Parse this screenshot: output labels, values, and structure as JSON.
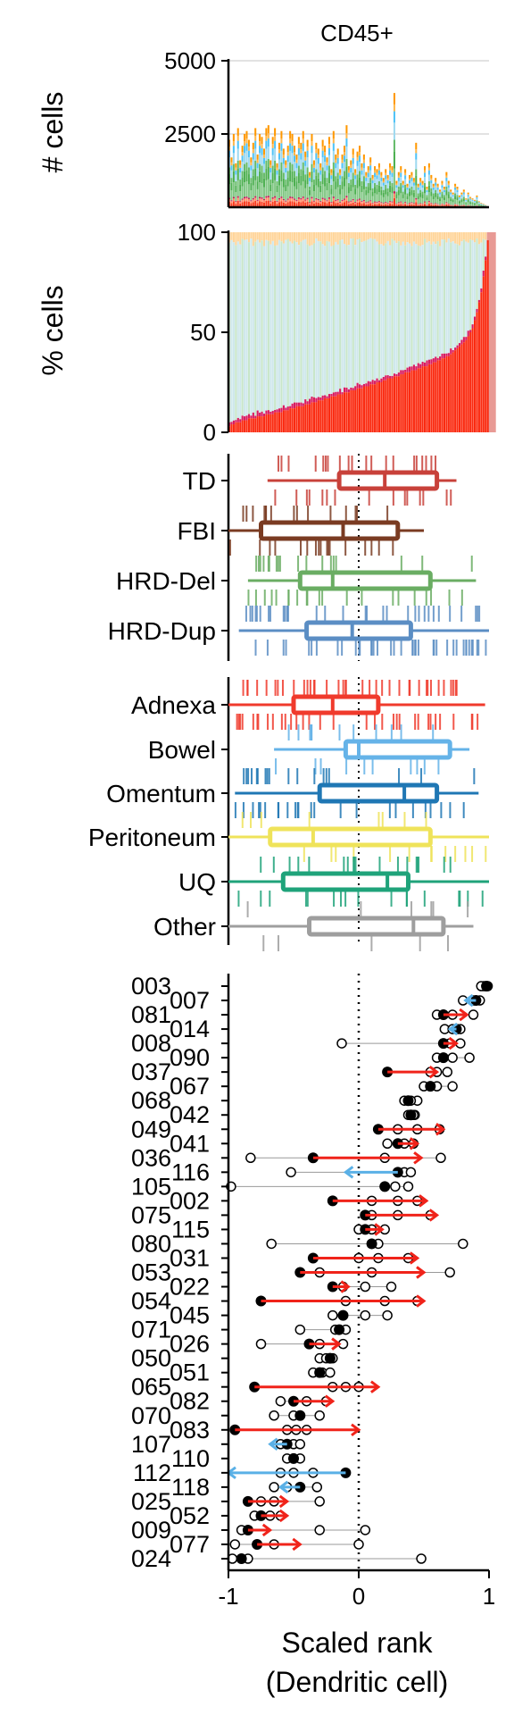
{
  "chart_data": [
    {
      "id": "cells",
      "type": "bar",
      "title": "CD45+",
      "ylabel": "# cells",
      "ylim": [
        0,
        5000
      ],
      "yticks": [
        2500,
        5000
      ],
      "grid": true,
      "n_samples": 120,
      "values_approx": [
        2300,
        1700,
        2500,
        1500,
        2700,
        1600,
        2100,
        2500,
        2600,
        2300,
        1700,
        2200,
        2700,
        1800,
        2500,
        2400,
        2000,
        2700,
        2800,
        1600,
        2400,
        2700,
        1500,
        2200,
        2600,
        2000,
        1600,
        2100,
        2600,
        2500,
        2100,
        1800,
        2400,
        2200,
        2600,
        1900,
        2300,
        1200,
        2500,
        1600,
        2200,
        2000,
        1500,
        2300,
        2100,
        1700,
        2400,
        1300,
        2600,
        1800,
        2000,
        1300,
        1800,
        2100,
        2800,
        1400,
        1600,
        2000,
        1300,
        1900,
        2100,
        1500,
        1800,
        1200,
        1400,
        1700,
        1100,
        1400,
        1300,
        1500,
        1200,
        1000,
        1300,
        1100,
        1500,
        1400,
        3900,
        900,
        1200,
        1400,
        900,
        1300,
        800,
        1100,
        1200,
        1000,
        2200,
        800,
        1000,
        900,
        1400,
        700,
        1500,
        1100,
        800,
        1000,
        800,
        600,
        900,
        700,
        1200,
        900,
        600,
        500,
        800,
        700,
        400,
        500,
        600,
        300,
        500,
        350,
        300,
        250,
        400,
        200,
        150,
        120,
        80,
        40
      ],
      "stack_colors": [
        "#fa3a1c",
        "#ff8a65",
        "#c2185b",
        "#81c784",
        "#4caf50",
        "#66bb6a",
        "#9fd9f0",
        "#4fc3f7",
        "#ffb74d",
        "#ff9800"
      ],
      "stack_fractions": [
        0.08,
        0.04,
        0.02,
        0.2,
        0.15,
        0.1,
        0.15,
        0.1,
        0.06,
        0.1
      ]
    },
    {
      "id": "pct",
      "type": "bar",
      "ylabel": "% cells",
      "ylim": [
        0,
        100
      ],
      "yticks": [
        0,
        50,
        100
      ],
      "n_samples": 120,
      "red_pct_approx": [
        3,
        4,
        4,
        5,
        5,
        5,
        6,
        6,
        6,
        7,
        7,
        7,
        7,
        8,
        8,
        8,
        8,
        9,
        9,
        9,
        9,
        10,
        10,
        10,
        10,
        11,
        11,
        11,
        12,
        12,
        12,
        13,
        13,
        13,
        13,
        14,
        14,
        14,
        15,
        15,
        15,
        16,
        16,
        16,
        17,
        17,
        17,
        18,
        18,
        18,
        19,
        19,
        19,
        20,
        20,
        20,
        21,
        21,
        21,
        22,
        22,
        22,
        23,
        23,
        23,
        24,
        24,
        24,
        25,
        25,
        25,
        26,
        26,
        27,
        27,
        27,
        28,
        28,
        28,
        29,
        29,
        30,
        30,
        30,
        31,
        31,
        31,
        32,
        32,
        33,
        33,
        33,
        34,
        34,
        35,
        35,
        36,
        36,
        37,
        37,
        38,
        38,
        39,
        40,
        41,
        42,
        43,
        44,
        45,
        46,
        48,
        50,
        52,
        56,
        60,
        65,
        70,
        78,
        86,
        96
      ],
      "colors": {
        "red": "#fa2a10",
        "magenta": "#d81b60",
        "light": "#cfe8ec",
        "green": "#c8e6c9",
        "yellow": "#fff3c4",
        "peach": "#ffd59a",
        "last": "#e89a95"
      }
    },
    {
      "id": "signature",
      "type": "boxplot",
      "xlim": [
        -1,
        1
      ],
      "categories": [
        "TD",
        "FBI",
        "HRD-Del",
        "HRD-Dup"
      ],
      "colors": [
        "#c8413a",
        "#7a3b22",
        "#6aad63",
        "#5b8ec4"
      ],
      "boxes": [
        {
          "q1": -0.15,
          "median": 0.2,
          "q3": 0.6,
          "min": -0.7,
          "max": 0.75
        },
        {
          "q1": -0.75,
          "median": -0.12,
          "q3": 0.3,
          "min": -1.0,
          "max": 0.5
        },
        {
          "q1": -0.45,
          "median": -0.2,
          "q3": 0.55,
          "min": -0.85,
          "max": 0.9
        },
        {
          "q1": -0.4,
          "median": -0.05,
          "q3": 0.4,
          "min": -0.92,
          "max": 1.0
        }
      ],
      "rug_density": [
        0.5,
        0.45,
        0.55,
        1.0
      ]
    },
    {
      "id": "site",
      "type": "boxplot",
      "xlim": [
        -1,
        1
      ],
      "categories": [
        "Adnexa",
        "Bowel",
        "Omentum",
        "Peritoneum",
        "UQ",
        "Other"
      ],
      "colors": [
        "#f03a2c",
        "#65b3e8",
        "#1f77b4",
        "#efe35a",
        "#1fa37a",
        "#9e9e9e"
      ],
      "boxes": [
        {
          "q1": -0.5,
          "median": -0.2,
          "q3": 0.15,
          "min": -1.0,
          "max": 0.97
        },
        {
          "q1": -0.1,
          "median": 0.0,
          "q3": 0.7,
          "min": -0.65,
          "max": 0.85
        },
        {
          "q1": -0.3,
          "median": 0.35,
          "q3": 0.6,
          "min": -0.95,
          "max": 0.92
        },
        {
          "q1": -0.68,
          "median": -0.35,
          "q3": 0.55,
          "min": -1.0,
          "max": 1.0
        },
        {
          "q1": -0.58,
          "median": 0.22,
          "q3": 0.38,
          "min": -1.0,
          "max": 1.0
        },
        {
          "q1": -0.38,
          "median": 0.42,
          "q3": 0.65,
          "min": -1.0,
          "max": 0.88
        }
      ],
      "rug_density": [
        1.0,
        0.3,
        0.6,
        0.3,
        0.5,
        0.15
      ]
    },
    {
      "id": "patients",
      "type": "scatter",
      "xlabel": "Scaled rank\n(Dendritic cell)",
      "xlim": [
        -1,
        1
      ],
      "xticks": [
        -1,
        0,
        1
      ],
      "xtick_labels": [
        "-1",
        "0",
        "1"
      ],
      "reference_line": 0,
      "arrow_colors": {
        "increase": "#f0231a",
        "decrease": "#5ab0e6"
      },
      "patients": [
        {
          "id": "003",
          "start": 0.98,
          "end": 0.95,
          "dots": [
            0.96,
            0.99,
            0.94
          ]
        },
        {
          "id": "007",
          "start": 0.9,
          "end": 0.82,
          "dots": [
            0.93,
            0.8,
            0.88
          ]
        },
        {
          "id": "081",
          "start": 0.65,
          "end": 0.83,
          "dots": [
            0.6,
            0.72,
            0.88
          ]
        },
        {
          "id": "014",
          "start": 0.75,
          "end": 0.7,
          "dots": [
            0.78,
            0.66,
            0.72
          ]
        },
        {
          "id": "008",
          "start": 0.65,
          "end": 0.75,
          "dots": [
            -0.13,
            0.7,
            0.78
          ]
        },
        {
          "id": "090",
          "start": 0.65,
          "end": 0.65,
          "dots": [
            0.72,
            0.85,
            0.6
          ]
        },
        {
          "id": "037",
          "start": 0.22,
          "end": 0.6,
          "dots": [
            0.6,
            0.68,
            0.55
          ]
        },
        {
          "id": "067",
          "start": 0.55,
          "end": 0.55,
          "dots": [
            0.6,
            0.72,
            0.5
          ]
        },
        {
          "id": "068",
          "start": 0.38,
          "end": 0.38,
          "dots": [
            0.35,
            0.45,
            0.4
          ]
        },
        {
          "id": "042",
          "start": 0.4,
          "end": 0.4,
          "dots": [
            0.38,
            0.43,
            0.42
          ]
        },
        {
          "id": "049",
          "start": 0.15,
          "end": 0.65,
          "dots": [
            0.3,
            0.45,
            0.62
          ]
        },
        {
          "id": "041",
          "start": 0.3,
          "end": 0.45,
          "dots": [
            0.22,
            0.35,
            0.42
          ]
        },
        {
          "id": "036",
          "start": -0.35,
          "end": 0.48,
          "dots": [
            -0.83,
            0.2,
            0.63
          ]
        },
        {
          "id": "116",
          "start": 0.3,
          "end": -0.1,
          "dots": [
            -0.52,
            0.35,
            0.4
          ]
        },
        {
          "id": "105",
          "start": 0.2,
          "end": 0.2,
          "dots": [
            -0.98,
            0.28,
            0.38
          ]
        },
        {
          "id": "002",
          "start": -0.2,
          "end": 0.52,
          "dots": [
            0.1,
            0.3,
            0.45
          ]
        },
        {
          "id": "075",
          "start": 0.05,
          "end": 0.6,
          "dots": [
            0.1,
            0.3,
            0.55
          ]
        },
        {
          "id": "115",
          "start": 0.05,
          "end": 0.18,
          "dots": [
            0.0,
            0.1,
            0.2
          ]
        },
        {
          "id": "080",
          "start": 0.1,
          "end": 0.1,
          "dots": [
            -0.67,
            0.15,
            0.8
          ]
        },
        {
          "id": "031",
          "start": -0.35,
          "end": 0.45,
          "dots": [
            0.0,
            0.15,
            0.38
          ]
        },
        {
          "id": "053",
          "start": -0.45,
          "end": 0.5,
          "dots": [
            -0.3,
            0.1,
            0.7
          ]
        },
        {
          "id": "022",
          "start": -0.2,
          "end": -0.08,
          "dots": [
            -0.12,
            0.05,
            0.25
          ]
        },
        {
          "id": "054",
          "start": -0.75,
          "end": 0.5,
          "dots": [
            -0.1,
            0.2,
            0.45
          ]
        },
        {
          "id": "045",
          "start": -0.12,
          "end": -0.12,
          "dots": [
            -0.2,
            0.05,
            0.22
          ]
        },
        {
          "id": "071",
          "start": -0.15,
          "end": -0.15,
          "dots": [
            -0.45,
            -0.1,
            -0.18
          ]
        },
        {
          "id": "026",
          "start": -0.38,
          "end": -0.15,
          "dots": [
            -0.75,
            -0.3,
            -0.12
          ]
        },
        {
          "id": "050",
          "start": -0.22,
          "end": -0.22,
          "dots": [
            -0.3,
            -0.2,
            -0.25
          ]
        },
        {
          "id": "051",
          "start": -0.3,
          "end": -0.3,
          "dots": [
            -0.28,
            -0.22,
            -0.35
          ]
        },
        {
          "id": "065",
          "start": -0.8,
          "end": 0.15,
          "dots": [
            -0.2,
            -0.1,
            0.0
          ]
        },
        {
          "id": "082",
          "start": -0.5,
          "end": -0.2,
          "dots": [
            -0.6,
            -0.4,
            -0.25
          ]
        },
        {
          "id": "070",
          "start": -0.45,
          "end": -0.45,
          "dots": [
            -0.65,
            -0.5,
            -0.3
          ]
        },
        {
          "id": "083",
          "start": -0.95,
          "end": 0.0,
          "dots": [
            -0.48,
            -0.4,
            -0.55
          ]
        },
        {
          "id": "107",
          "start": -0.55,
          "end": -0.68,
          "dots": [
            -0.5,
            -0.6,
            -0.45
          ]
        },
        {
          "id": "110",
          "start": -0.5,
          "end": -0.5,
          "dots": [
            -0.55,
            -0.45,
            -0.5
          ]
        },
        {
          "id": "112",
          "start": -0.1,
          "end": -1.0,
          "dots": [
            -0.6,
            -0.35,
            -0.5
          ]
        },
        {
          "id": "118",
          "start": -0.45,
          "end": -0.6,
          "dots": [
            -0.32,
            -0.55,
            -0.65
          ]
        },
        {
          "id": "025",
          "start": -0.85,
          "end": -0.55,
          "dots": [
            -0.75,
            -0.65,
            -0.3
          ]
        },
        {
          "id": "052",
          "start": -0.75,
          "end": -0.55,
          "dots": [
            -0.8,
            -0.68,
            -0.6
          ]
        },
        {
          "id": "009",
          "start": -0.85,
          "end": -0.68,
          "dots": [
            -0.9,
            -0.3,
            0.05
          ]
        },
        {
          "id": "077",
          "start": -0.78,
          "end": -0.45,
          "dots": [
            -0.95,
            -0.65,
            0.0
          ]
        },
        {
          "id": "024",
          "start": -0.9,
          "end": -0.9,
          "dots": [
            -0.97,
            -0.85,
            0.48
          ]
        }
      ]
    }
  ]
}
